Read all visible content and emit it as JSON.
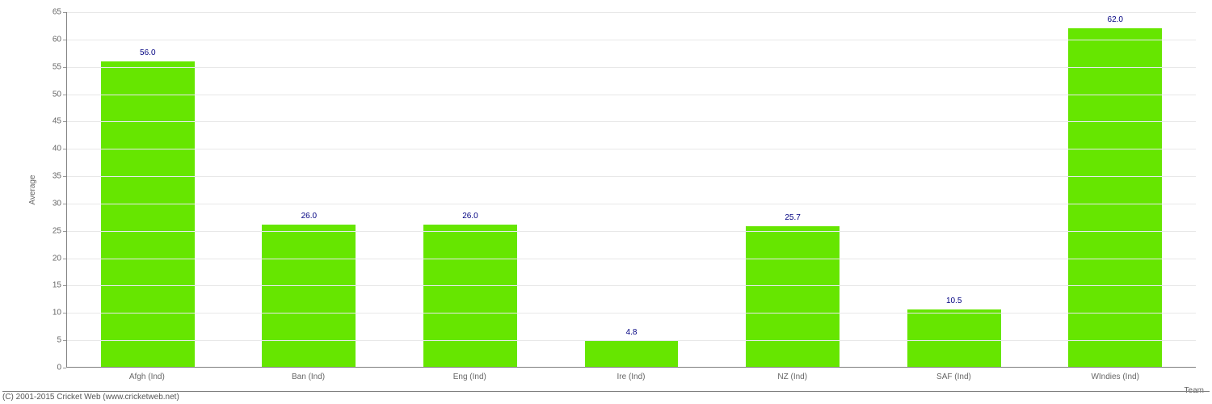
{
  "chart": {
    "type": "bar",
    "categories": [
      "Afgh (Ind)",
      "Ban (Ind)",
      "Eng (Ind)",
      "Ire (Ind)",
      "NZ (Ind)",
      "SAF (Ind)",
      "WIndies (Ind)"
    ],
    "values": [
      56.0,
      26.0,
      26.0,
      4.8,
      25.7,
      10.5,
      62.0
    ],
    "value_labels": [
      "56.0",
      "26.0",
      "26.0",
      "4.8",
      "25.7",
      "10.5",
      "62.0"
    ],
    "bar_color": "#66e600",
    "value_label_color": "#000080",
    "ylim": [
      0,
      65
    ],
    "ytick_step": 5,
    "ylabel": "Average",
    "xlabel": "Team",
    "background_color": "#ffffff",
    "grid_color": "#e8e8e8",
    "axis_color": "#808080",
    "tick_label_color": "#666666",
    "tick_fontsize": 10,
    "label_fontsize": 10,
    "value_fontsize": 10,
    "bar_width": 0.58
  },
  "footer": {
    "copyright": "(C) 2001-2015 Cricket Web (www.cricketweb.net)"
  }
}
